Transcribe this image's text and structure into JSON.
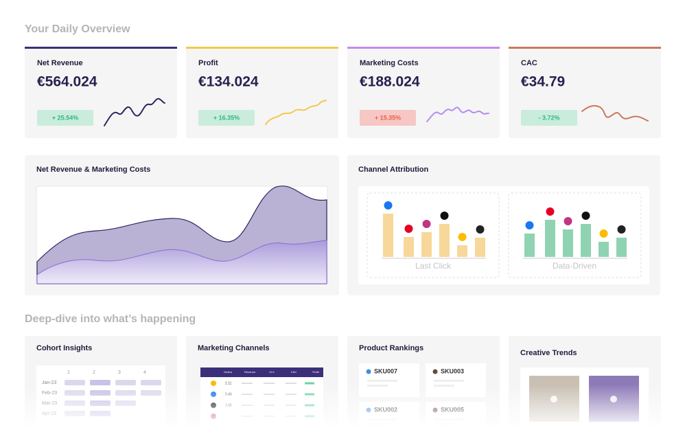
{
  "header": {
    "title": "Your Daily Overview"
  },
  "kpis": [
    {
      "label": "Net Revenue",
      "value": "€564.024",
      "change": "+ 25.54%",
      "trend": "up"
    },
    {
      "label": "Profit",
      "value": "€134.024",
      "change": "+ 16.35%",
      "trend": "up"
    },
    {
      "label": "Marketing Costs",
      "value": "€188.024",
      "change": "+ 15.35%",
      "trend": "bad"
    },
    {
      "label": "CAC",
      "value": "€34.79",
      "change": "- 3.72%",
      "trend": "up"
    }
  ],
  "panels": {
    "revenue_costs": {
      "title": "Net Revenue & Marketing Costs"
    },
    "channel_attribution": {
      "title": "Channel Attribution",
      "groups": [
        {
          "label": "Last Click",
          "color": "#f8d79a",
          "bars": [
            63,
            29,
            36,
            48,
            17,
            28
          ]
        },
        {
          "label": "Data-Driven",
          "color": "#8fd3b2",
          "bars": [
            34,
            54,
            40,
            48,
            22,
            28
          ]
        }
      ]
    }
  },
  "deep_dive": {
    "title": "Deep-dive into what’s happening",
    "cohort": {
      "title": "Cohort Insights",
      "columns": [
        "1",
        "2",
        "3",
        "4"
      ],
      "rows": [
        "Jan-23",
        "Feb-23",
        "Mar-23",
        "Apr-23"
      ]
    },
    "channels": {
      "title": "Marketing Channels",
      "columns": [
        "Orders",
        "Revenue",
        "CLV",
        "CAC",
        "Profit"
      ],
      "orders": [
        "2.11",
        "5.46",
        "1.65"
      ]
    },
    "products": {
      "title": "Product Rankings",
      "items": [
        "SKU007",
        "SKU003",
        "SKU002",
        "SKU005"
      ]
    },
    "creative": {
      "title": "Creative Trends"
    }
  }
}
